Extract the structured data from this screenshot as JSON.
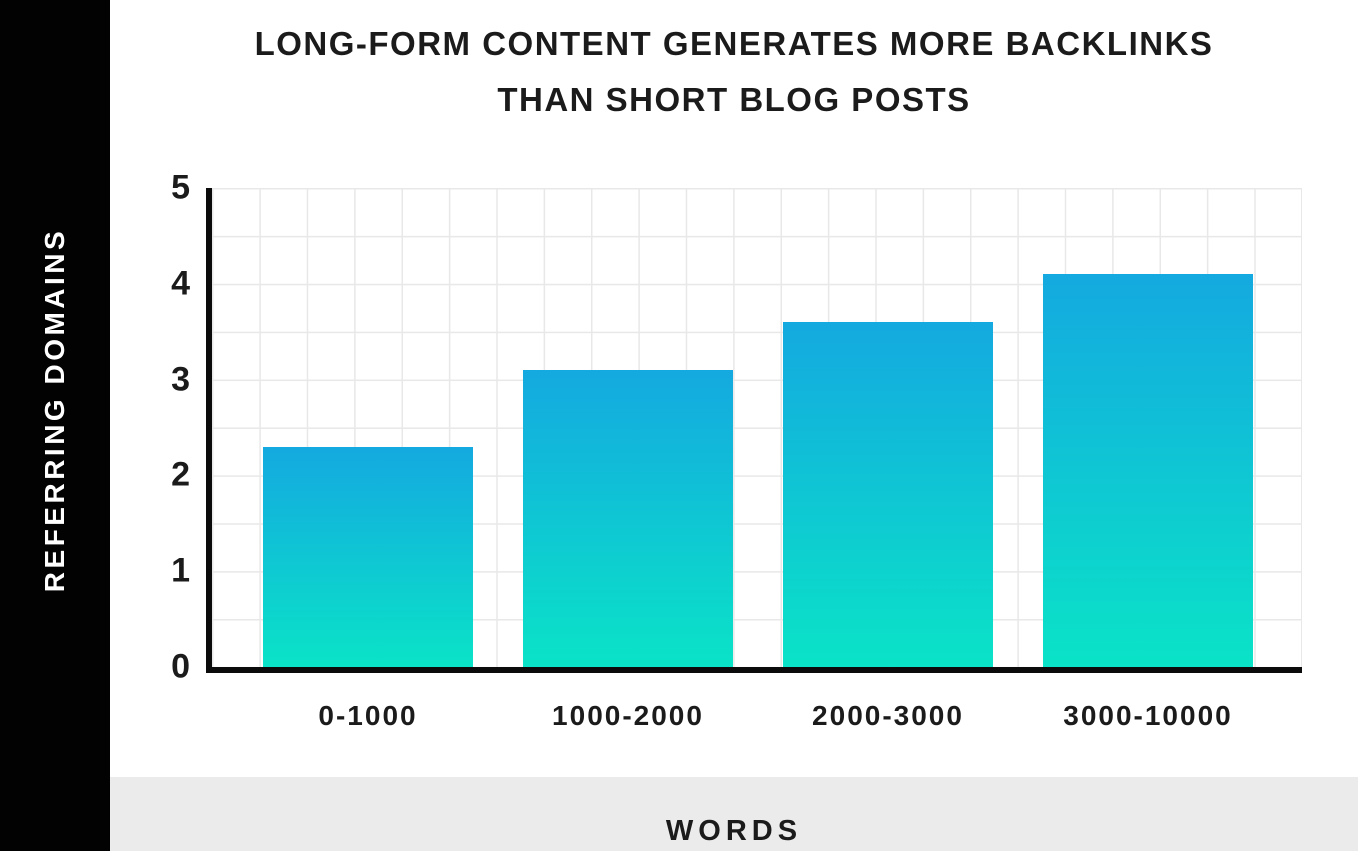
{
  "title": {
    "line1": "LONG-FORM CONTENT GENERATES MORE BACKLINKS",
    "line2": "THAN SHORT BLOG POSTS"
  },
  "y_axis": {
    "title": "REFERRING DOMAINS"
  },
  "x_axis": {
    "title": "WORDS"
  },
  "colors": {
    "bar_gradient_top": "#14a9e0",
    "bar_gradient_bottom": "#0ae3c7",
    "left_strip": "#020202",
    "bottom_strip": "#ebebeb",
    "gridline": "#e8e8e8",
    "axis": "#0b0b0b",
    "text": "#1b1b1b",
    "y_axis_title_text": "#ffffff"
  },
  "chart_data": {
    "type": "bar",
    "title": "LONG-FORM CONTENT GENERATES MORE BACKLINKS THAN SHORT BLOG POSTS",
    "categories": [
      "0-1000",
      "1000-2000",
      "2000-3000",
      "3000-10000"
    ],
    "values": [
      2.3,
      3.1,
      3.6,
      4.1
    ],
    "xlabel": "WORDS",
    "ylabel": "REFERRING DOMAINS",
    "ylim": [
      0,
      5
    ],
    "yticks": [
      5,
      4,
      3,
      2,
      1,
      0
    ],
    "grid": true,
    "gridline_interval": 0.5,
    "legend": "none",
    "bar_fill": "vertical gradient, blue top to mint-teal bottom"
  }
}
